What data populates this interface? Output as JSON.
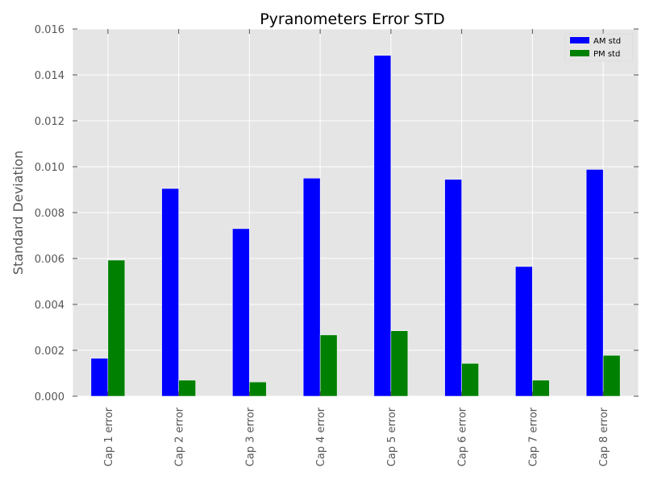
{
  "chart_data": {
    "type": "bar",
    "title": "Pyranometers Error STD",
    "xlabel": "",
    "ylabel": "Standard Deviation",
    "ylim": [
      0,
      0.016
    ],
    "yticks": [
      "0.000",
      "0.002",
      "0.004",
      "0.006",
      "0.008",
      "0.010",
      "0.012",
      "0.014",
      "0.016"
    ],
    "categories": [
      "Cap 1 error",
      "Cap 2 error",
      "Cap 3 error",
      "Cap 4 error",
      "Cap 5 error",
      "Cap 6 error",
      "Cap 7 error",
      "Cap 8 error"
    ],
    "series": [
      {
        "name": "AM std",
        "color": "#0000ff",
        "values": [
          0.00165,
          0.00905,
          0.0073,
          0.0095,
          0.01485,
          0.00945,
          0.00565,
          0.00988
        ]
      },
      {
        "name": "PM std",
        "color": "#008000",
        "values": [
          0.00593,
          0.0007,
          0.00062,
          0.00267,
          0.00285,
          0.00143,
          0.0007,
          0.00178
        ]
      }
    ],
    "grid": true,
    "legend_position": "top-right",
    "background": "#e5e5e5"
  }
}
